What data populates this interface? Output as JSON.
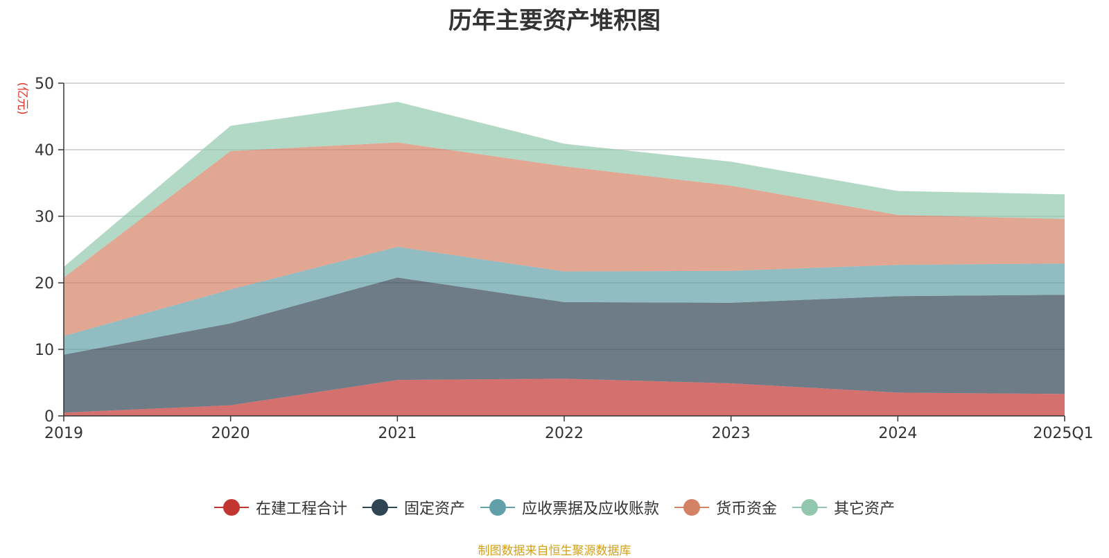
{
  "chart_data": {
    "type": "area",
    "stacked": true,
    "title": "历年主要资产堆积图",
    "ylabel": "(亿元)",
    "xlabel": "",
    "categories": [
      "2019",
      "2020",
      "2021",
      "2022",
      "2023",
      "2024",
      "2025Q1"
    ],
    "ylim": [
      0,
      50
    ],
    "yticks": [
      0,
      10,
      20,
      30,
      40,
      50
    ],
    "grid": true,
    "legend_position": "bottom",
    "series": [
      {
        "name": "在建工程合计",
        "color": "#c23531",
        "values": [
          0.5,
          1.6,
          5.4,
          5.6,
          4.9,
          3.5,
          3.3
        ]
      },
      {
        "name": "固定资产",
        "color": "#2f4554",
        "values": [
          8.7,
          12.3,
          15.4,
          11.5,
          12.1,
          14.5,
          14.9
        ]
      },
      {
        "name": "应收票据及应收账款",
        "color": "#61a0a8",
        "values": [
          2.8,
          5.1,
          4.6,
          4.6,
          4.8,
          4.7,
          4.7
        ]
      },
      {
        "name": "货币资金",
        "color": "#d48265",
        "values": [
          8.8,
          20.8,
          15.7,
          15.8,
          12.8,
          7.5,
          6.7
        ]
      },
      {
        "name": "其它资产",
        "color": "#91c7ae",
        "values": [
          1.6,
          3.8,
          6.1,
          3.4,
          3.6,
          3.6,
          3.7
        ]
      }
    ],
    "source": "制图数据来自恒生聚源数据库"
  }
}
